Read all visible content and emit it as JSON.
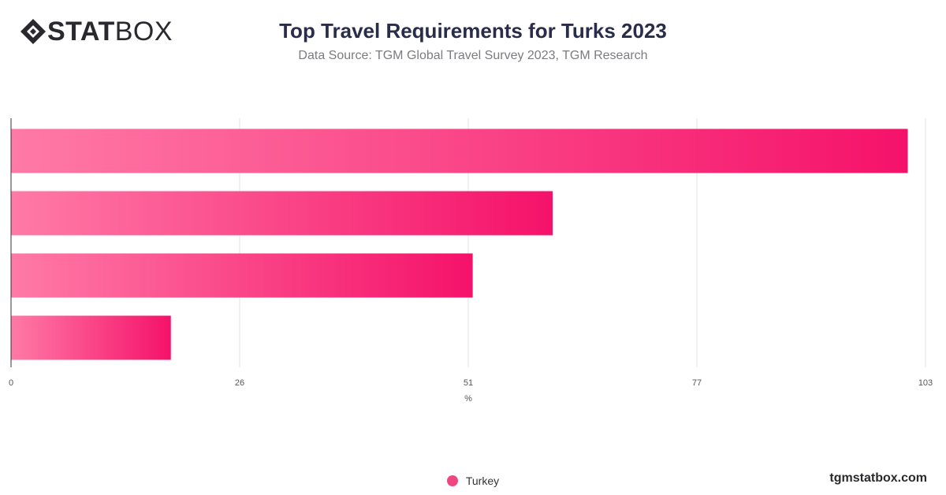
{
  "header": {
    "logo_bold": "STAT",
    "logo_light": "BOX",
    "logo_icon": "diamond-logo-icon"
  },
  "chart_data": {
    "type": "bar",
    "orientation": "horizontal",
    "title": "Top Travel Requirements for Turks 2023",
    "subtitle": "Data Source: TGM Global Travel Survey 2023, TGM Research",
    "xlabel": "%",
    "ylabel": "",
    "xlim": [
      0,
      103
    ],
    "x_ticks": [
      "0",
      "26",
      "51",
      "77",
      "103"
    ],
    "x_tick_values": [
      0,
      25.75,
      51.5,
      77.25,
      103
    ],
    "grid": true,
    "legend_position": "bottom",
    "bar_gradient": [
      "#ff7aa6",
      "#f5126a"
    ],
    "series": [
      {
        "name": "Turkey",
        "color": "#f0467f",
        "values": [
          101,
          61,
          52,
          18
        ]
      }
    ]
  },
  "footer": {
    "url": "tgmstatbox.com"
  }
}
